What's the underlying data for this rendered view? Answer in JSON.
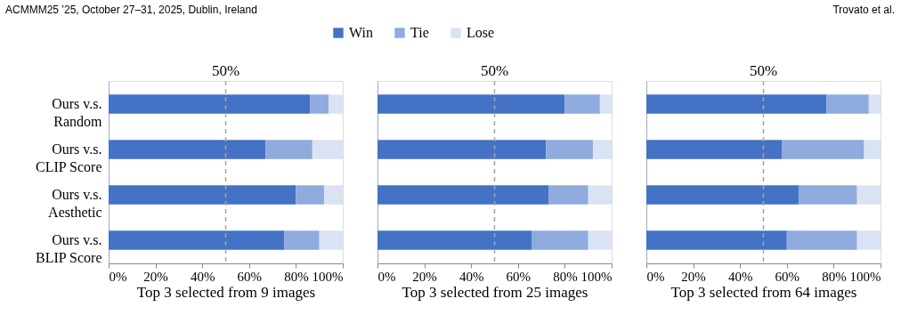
{
  "chart_data": [
    {
      "type": "bar",
      "orientation": "horizontal",
      "stacked": true,
      "xlabel": "Top 3 selected from 9 images",
      "annotations": [
        "ACMMM25 ’25, October 27–31, 2025, Dublin, Ireland"
      ],
      "categories": [
        "Ours v.s. Random",
        "Ours v.s. CLIP Score",
        "Ours v.s. Aesthetic",
        "Ours v.s. BLIP Score"
      ],
      "series": [
        {
          "name": "Win",
          "color": "#4472c4",
          "values": [
            86,
            67,
            80,
            75
          ]
        },
        {
          "name": "Tie",
          "color": "#8faadc",
          "values": [
            8,
            20,
            12,
            15
          ]
        },
        {
          "name": "Lose",
          "color": "#dae3f3",
          "values": [
            6,
            13,
            8,
            10
          ]
        }
      ],
      "xlim": [
        0,
        100
      ],
      "xticks": [
        {
          "value": 0,
          "label": "0%"
        },
        {
          "value": 20,
          "label": "20%"
        },
        {
          "value": 40,
          "label": "40%"
        },
        {
          "value": 60,
          "label": "60%"
        },
        {
          "value": 80,
          "label": "80%"
        },
        {
          "value": 100,
          "label": "100%"
        }
      ],
      "ref_lines": [
        {
          "axis": "x",
          "value": 50,
          "label": "50%",
          "color": "#a6a6a6",
          "line_style": "dashed"
        }
      ],
      "legend": "top",
      "grid": false
    },
    {
      "type": "bar",
      "orientation": "horizontal",
      "stacked": true,
      "xlabel": "Top 3 selected from 25 images",
      "categories": [
        "Ours v.s. Random",
        "Ours v.s. CLIP Score",
        "Ours v.s. Aesthetic",
        "Ours v.s. BLIP Score"
      ],
      "series": [
        {
          "name": "Win",
          "color": "#4472c4",
          "values": [
            80,
            72,
            73,
            66
          ]
        },
        {
          "name": "Tie",
          "color": "#8faadc",
          "values": [
            15,
            20,
            17,
            24
          ]
        },
        {
          "name": "Lose",
          "color": "#dae3f3",
          "values": [
            5,
            8,
            10,
            10
          ]
        }
      ],
      "xlim": [
        0,
        100
      ],
      "xticks": [
        {
          "value": 0,
          "label": "0%"
        },
        {
          "value": 20,
          "label": "20%"
        },
        {
          "value": 40,
          "label": "40%"
        },
        {
          "value": 60,
          "label": "60%"
        },
        {
          "value": 80,
          "label": "80%"
        },
        {
          "value": 100,
          "label": "100%"
        }
      ],
      "ref_lines": [
        {
          "axis": "x",
          "value": 50,
          "label": "50%",
          "color": "#a6a6a6",
          "line_style": "dashed"
        }
      ],
      "tick_labels": "x",
      "grid": false
    },
    {
      "type": "bar",
      "orientation": "horizontal",
      "stacked": true,
      "xlabel": "Top 3 selected from 64 images",
      "annotations": [
        "Trovato et al."
      ],
      "categories": [
        "Ours v.s. Random",
        "Ours v.s. CLIP Score",
        "Ours v.s. Aesthetic",
        "Ours v.s. BLIP Score"
      ],
      "series": [
        {
          "name": "Win",
          "color": "#4472c4",
          "values": [
            77,
            58,
            65,
            60
          ]
        },
        {
          "name": "Tie",
          "color": "#8faadc",
          "values": [
            18,
            35,
            25,
            30
          ]
        },
        {
          "name": "Lose",
          "color": "#dae3f3",
          "values": [
            5,
            7,
            10,
            10
          ]
        }
      ],
      "xlim": [
        0,
        100
      ],
      "xticks": [
        {
          "value": 0,
          "label": "0%"
        },
        {
          "value": 20,
          "label": "20%"
        },
        {
          "value": 40,
          "label": "40%"
        },
        {
          "value": 60,
          "label": "60%"
        },
        {
          "value": 80,
          "label": "80%"
        },
        {
          "value": 100,
          "label": "100%"
        }
      ],
      "ref_lines": [
        {
          "axis": "x",
          "value": 50,
          "label": "50%",
          "color": "#a6a6a6",
          "line_style": "dashed"
        }
      ],
      "tick_labels": "x",
      "grid": false
    }
  ]
}
